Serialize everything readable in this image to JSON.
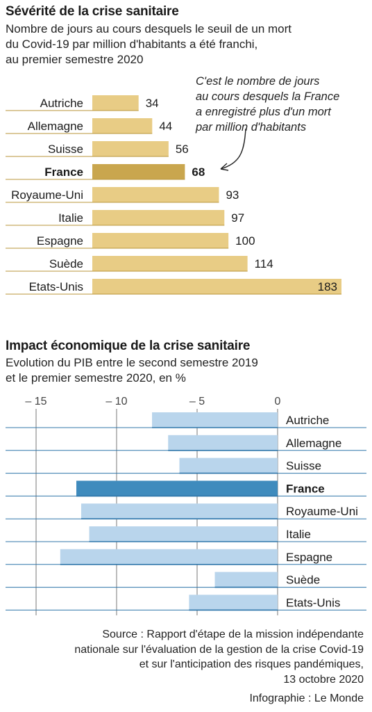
{
  "chart1": {
    "title": "Sévérité de la crise sanitaire",
    "subtitle": "Nombre de jours au cours desquels le seuil de un mort\ndu Covid-19 par million d'habitants a été franchi,\nau premier semestre 2020",
    "annotation": "C'est le nombre de jours\nau cours desquels la France\na enregistré plus d'un mort\npar million d'habitants"
  },
  "chart2": {
    "title": "Impact économique de la crise sanitaire",
    "subtitle": "Evolution du PIB entre le second semestre 2019\net le premier semestre 2020, en %"
  },
  "source": "Source : Rapport d'étape de la mission indépendante\nnationale sur l'évaluation de la gestion de la crise Covid-19\net sur l'anticipation des risques pandémiques,\n13 octobre 2020",
  "credit": "Infographie : Le Monde",
  "colors": {
    "bar1": "#e8cc85",
    "bar1_highlight": "#c9a64e",
    "bar1_line": "#b8963a",
    "bar2": "#b9d5ec",
    "bar2_highlight": "#3f8bbd",
    "bar2_line": "#2f76aa"
  },
  "chart_data": [
    {
      "type": "bar",
      "orientation": "horizontal",
      "categories": [
        "Autriche",
        "Allemagne",
        "Suisse",
        "France",
        "Royaume-Uni",
        "Italie",
        "Espagne",
        "Suède",
        "Etats-Unis"
      ],
      "values": [
        34,
        44,
        56,
        68,
        93,
        97,
        100,
        114,
        183
      ],
      "highlight": "France",
      "xlim": [
        0,
        183
      ],
      "grid": false
    },
    {
      "type": "bar",
      "orientation": "horizontal",
      "categories": [
        "Autriche",
        "Allemagne",
        "Suisse",
        "France",
        "Royaume-Uni",
        "Italie",
        "Espagne",
        "Suède",
        "Etats-Unis"
      ],
      "values": [
        -7.8,
        -6.8,
        -6.1,
        -12.5,
        -12.2,
        -11.7,
        -13.5,
        -3.9,
        -5.5
      ],
      "highlight": "France",
      "xlim": [
        -15.5,
        0
      ],
      "xticks": [
        -15,
        -10,
        -5,
        0
      ],
      "xtick_labels": [
        "– 15",
        "– 10",
        "– 5",
        "0"
      ],
      "grid": true
    }
  ]
}
